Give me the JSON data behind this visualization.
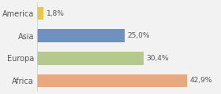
{
  "categories": [
    "America",
    "Asia",
    "Europa",
    "Africa"
  ],
  "values": [
    1.8,
    25.0,
    30.4,
    42.9
  ],
  "labels": [
    "1,8%",
    "25,0%",
    "30,4%",
    "42,9%"
  ],
  "bar_colors": [
    "#e8c84a",
    "#7090c0",
    "#b5c98e",
    "#e8a97e"
  ],
  "background_color": "#f2f2f2",
  "xlim": [
    0,
    52
  ],
  "bar_height": 0.58
}
